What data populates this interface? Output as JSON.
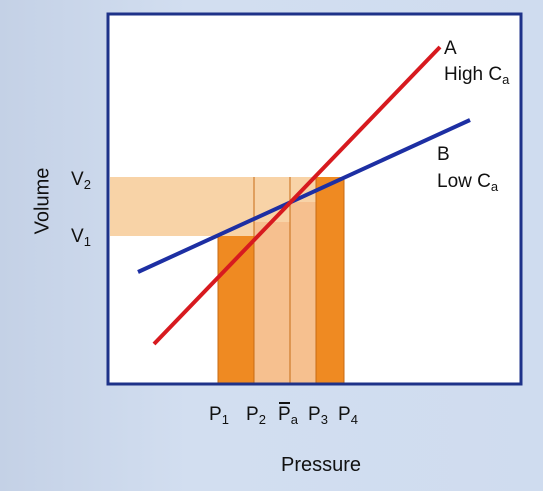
{
  "axes": {
    "y_title": "Volume",
    "x_title": "Pressure"
  },
  "y_ticks": [
    {
      "main": "V",
      "sub": "2"
    },
    {
      "main": "V",
      "sub": "1"
    }
  ],
  "x_ticks": [
    {
      "main": "P",
      "sub": "1"
    },
    {
      "main": "P",
      "sub": "2"
    },
    {
      "main": "P",
      "sub": "a",
      "overbar": true
    },
    {
      "main": "P",
      "sub": "3"
    },
    {
      "main": "P",
      "sub": "4"
    }
  ],
  "lines": {
    "A": {
      "letter": "A",
      "desc_main": "High C",
      "desc_sub": "a",
      "color": "#d71a1f"
    },
    "B": {
      "letter": "B",
      "desc_main": "Low C",
      "desc_sub": "a",
      "color": "#1d2fa3"
    }
  },
  "colors": {
    "plot_background": "#ffffff",
    "volume_band": "#f8d3a7",
    "pressure_band_light": "#f6c08f",
    "pressure_band_dark": "#ef8a22",
    "frame": "#1e3289"
  }
}
